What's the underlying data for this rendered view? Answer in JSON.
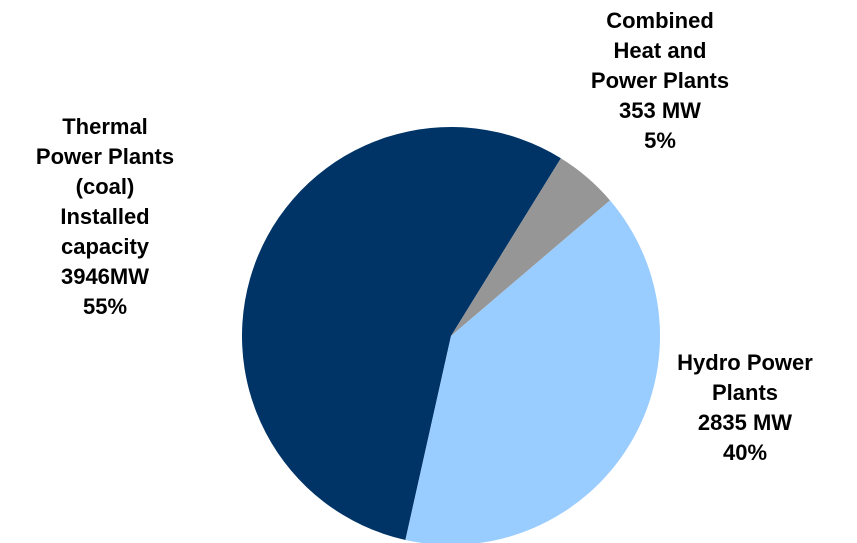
{
  "chart_data": {
    "type": "pie",
    "title": "",
    "slices": [
      {
        "name": "Thermal Power Plants (coal)",
        "value": 3946,
        "unit": "MW",
        "percent": 55,
        "color": "#003366",
        "label_lines": [
          "Thermal",
          "Power Plants",
          "(coal)",
          "Installed",
          "capacity",
          "3946MW",
          "55%"
        ]
      },
      {
        "name": "Hydro Power Plants",
        "value": 2835,
        "unit": "MW",
        "percent": 40,
        "color": "#99CCFF",
        "label_lines": [
          "Hydro Power",
          "Plants",
          "2835 MW",
          "40%"
        ]
      },
      {
        "name": "Combined Heat and Power Plants",
        "value": 353,
        "unit": "MW",
        "percent": 5,
        "color": "#969696",
        "label_lines": [
          "Combined",
          "Heat and",
          "Power Plants",
          "353 MW",
          "5%"
        ]
      }
    ],
    "legend": "none"
  }
}
